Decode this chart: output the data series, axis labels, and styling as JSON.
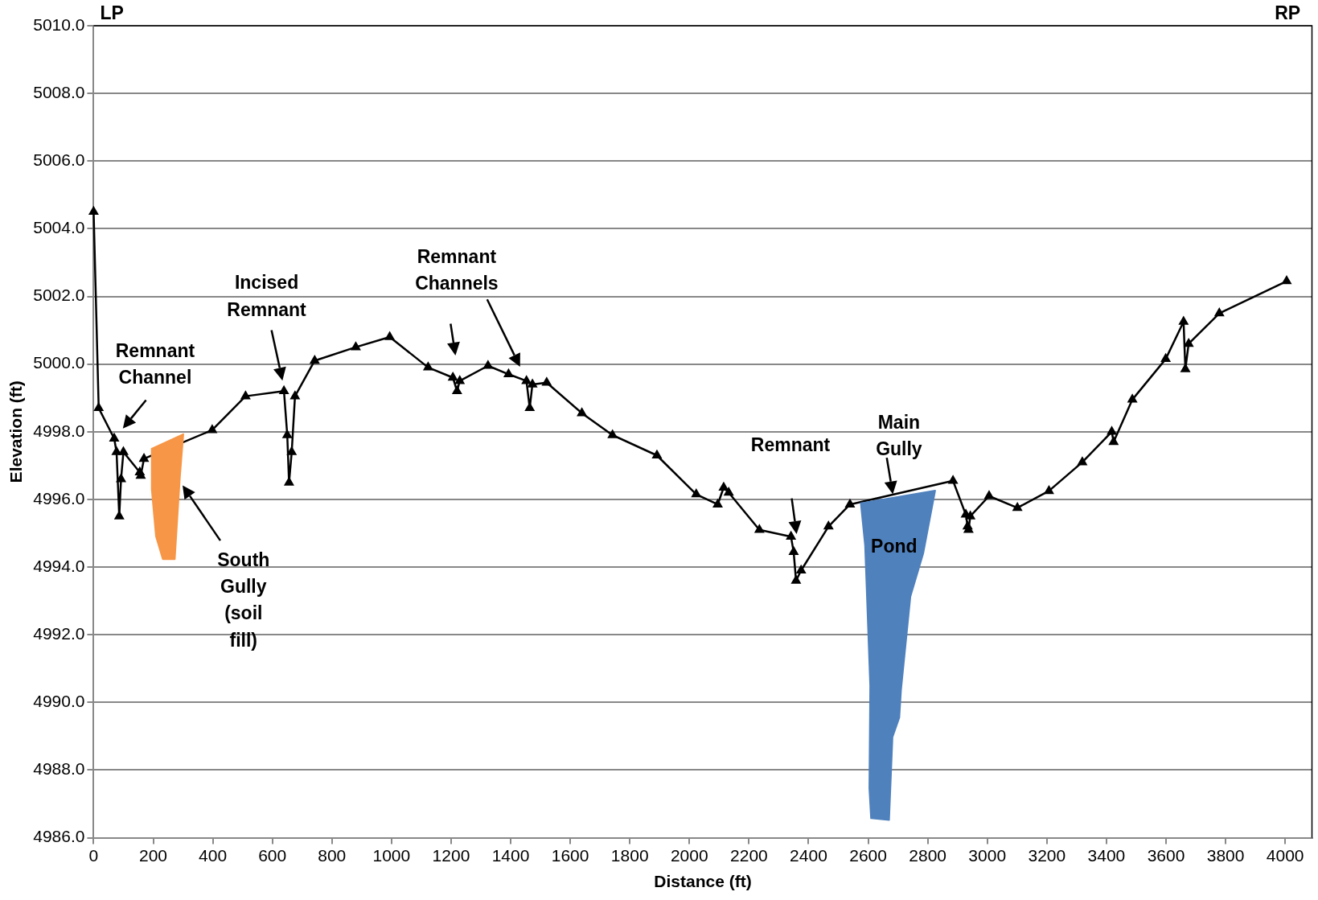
{
  "chart_data": {
    "type": "line",
    "xlabel": "Distance (ft)",
    "ylabel": "Elevation (ft)",
    "color": "#000000",
    "marker": "triangle",
    "grid": "y",
    "x": [
      0,
      17,
      69,
      77,
      86,
      92,
      100,
      155,
      158,
      169,
      398,
      510,
      639,
      650,
      656,
      665,
      676,
      742,
      880,
      994,
      1123,
      1206,
      1220,
      1229,
      1324,
      1393,
      1453,
      1464,
      1473,
      1521,
      1639,
      1742,
      1891,
      2023,
      2095,
      2115,
      2132,
      2235,
      2341,
      2350,
      2358,
      2375,
      2467,
      2539,
      2885,
      2928,
      2934,
      2937,
      2943,
      3006,
      3101,
      3207,
      3319,
      3418,
      3424,
      3487,
      3599,
      3659,
      3665,
      3676,
      3779,
      4005
    ],
    "values": [
      5004.5,
      4998.7,
      4997.8,
      4997.4,
      4995.5,
      4996.6,
      4997.4,
      4996.8,
      4996.7,
      4997.2,
      4998.05,
      4999.05,
      4999.2,
      4997.9,
      4996.5,
      4997.4,
      4999.05,
      5000.1,
      5000.5,
      5000.8,
      4999.9,
      4999.6,
      4999.2,
      4999.5,
      4999.95,
      4999.7,
      4999.5,
      4998.7,
      4999.4,
      4999.45,
      4998.55,
      4997.9,
      4997.3,
      4996.15,
      4995.85,
      4996.35,
      4996.2,
      4995.1,
      4994.9,
      4994.45,
      4993.6,
      4993.9,
      4995.2,
      4995.85,
      4996.55,
      4995.55,
      4995.2,
      4995.1,
      4995.5,
      4996.1,
      4995.75,
      4996.25,
      4997.1,
      4998.0,
      4997.7,
      4998.95,
      5000.15,
      5001.25,
      4999.85,
      5000.6,
      5001.5,
      5002.45
    ],
    "xlim": [
      0,
      4090
    ],
    "xticks": [
      0,
      200,
      400,
      600,
      800,
      1000,
      1200,
      1400,
      1600,
      1800,
      2000,
      2200,
      2400,
      2600,
      2800,
      3000,
      3200,
      3400,
      3600,
      3800,
      4000
    ],
    "ylim": [
      4986,
      5010
    ],
    "yticks": [
      {
        "value": 4986,
        "label": "4986.0"
      },
      {
        "value": 4988,
        "label": "4988.0"
      },
      {
        "value": 4990,
        "label": "4990.0"
      },
      {
        "value": 4992,
        "label": "4992.0"
      },
      {
        "value": 4994,
        "label": "4994.0"
      },
      {
        "value": 4996,
        "label": "4996.0"
      },
      {
        "value": 4998,
        "label": "4998.0"
      },
      {
        "value": 5000,
        "label": "5000.0"
      },
      {
        "value": 5002,
        "label": "5002.0"
      },
      {
        "value": 5004,
        "label": "5004.0"
      },
      {
        "value": 5006,
        "label": "5006.0"
      },
      {
        "value": 5008,
        "label": "5008.0"
      },
      {
        "value": 5010,
        "label": "5010.0"
      }
    ],
    "annotations": [
      "LP",
      "RP",
      "Remnant Channel",
      "Incised Remnant",
      "Remnant Channels",
      "South Gully (soil fill)",
      "Remnant",
      "Main Gully",
      "Pond"
    ]
  }
}
